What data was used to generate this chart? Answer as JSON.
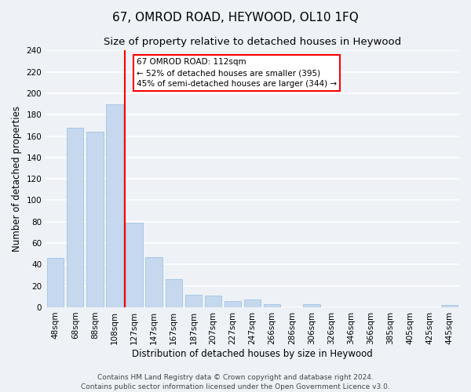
{
  "title": "67, OMROD ROAD, HEYWOOD, OL10 1FQ",
  "subtitle": "Size of property relative to detached houses in Heywood",
  "xlabel": "Distribution of detached houses by size in Heywood",
  "ylabel": "Number of detached properties",
  "bar_labels": [
    "48sqm",
    "68sqm",
    "88sqm",
    "108sqm",
    "127sqm",
    "147sqm",
    "167sqm",
    "187sqm",
    "207sqm",
    "227sqm",
    "247sqm",
    "266sqm",
    "286sqm",
    "306sqm",
    "326sqm",
    "346sqm",
    "366sqm",
    "385sqm",
    "405sqm",
    "425sqm",
    "445sqm"
  ],
  "bar_values": [
    46,
    168,
    164,
    190,
    79,
    47,
    26,
    12,
    11,
    6,
    7,
    3,
    0,
    3,
    0,
    0,
    0,
    0,
    0,
    0,
    2
  ],
  "bar_color": "#c5d8ed",
  "bar_edge_color": "#a8c8e8",
  "vline_x": 3.5,
  "vline_color": "red",
  "annotation_box_title": "67 OMROD ROAD: 112sqm",
  "annotation_line1": "← 52% of detached houses are smaller (395)",
  "annotation_line2": "45% of semi-detached houses are larger (344) →",
  "annotation_box_color": "white",
  "annotation_box_edgecolor": "red",
  "ylim": [
    0,
    240
  ],
  "yticks": [
    0,
    20,
    40,
    60,
    80,
    100,
    120,
    140,
    160,
    180,
    200,
    220,
    240
  ],
  "footer1": "Contains HM Land Registry data © Crown copyright and database right 2024.",
  "footer2": "Contains public sector information licensed under the Open Government Licence v3.0.",
  "bg_color": "#eef2f7",
  "grid_color": "white",
  "title_fontsize": 11,
  "subtitle_fontsize": 9.5,
  "axis_label_fontsize": 8.5,
  "tick_fontsize": 7.5,
  "footer_fontsize": 6.5
}
